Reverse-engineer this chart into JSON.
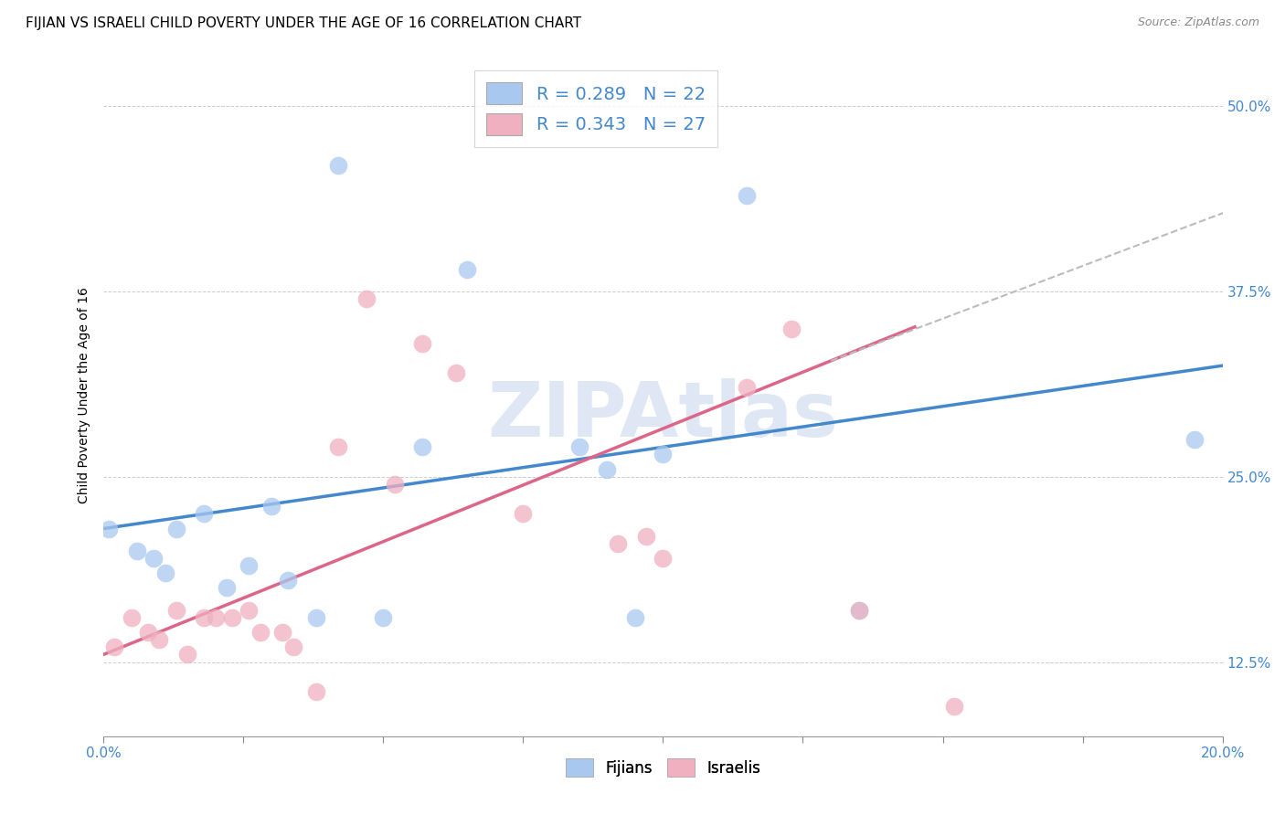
{
  "title": "FIJIAN VS ISRAELI CHILD POVERTY UNDER THE AGE OF 16 CORRELATION CHART",
  "source": "Source: ZipAtlas.com",
  "xlabel": "",
  "ylabel": "Child Poverty Under the Age of 16",
  "xlim": [
    0.0,
    0.2
  ],
  "ylim": [
    0.075,
    0.535
  ],
  "yticks": [
    0.125,
    0.25,
    0.375,
    0.5
  ],
  "ytick_labels": [
    "12.5%",
    "25.0%",
    "37.5%",
    "50.0%"
  ],
  "xticks": [
    0.0,
    0.025,
    0.05,
    0.075,
    0.1,
    0.125,
    0.15,
    0.175,
    0.2
  ],
  "xtick_labels": [
    "0.0%",
    "",
    "",
    "",
    "",
    "",
    "",
    "",
    "20.0%"
  ],
  "fijians_color": "#a8c8f0",
  "israelis_color": "#f0b0c0",
  "fijians_label": "R = 0.289   N = 22",
  "israelis_label": "R = 0.343   N = 27",
  "legend_fijians": "Fijians",
  "legend_israelis": "Israelis",
  "watermark": "ZIPAtlas",
  "fijians_x": [
    0.001,
    0.006,
    0.009,
    0.011,
    0.013,
    0.018,
    0.022,
    0.026,
    0.03,
    0.033,
    0.038,
    0.042,
    0.05,
    0.057,
    0.065,
    0.085,
    0.09,
    0.095,
    0.1,
    0.115,
    0.135,
    0.195
  ],
  "fijians_y": [
    0.215,
    0.2,
    0.195,
    0.185,
    0.215,
    0.225,
    0.175,
    0.19,
    0.23,
    0.18,
    0.155,
    0.46,
    0.155,
    0.27,
    0.39,
    0.27,
    0.255,
    0.155,
    0.265,
    0.44,
    0.16,
    0.275
  ],
  "israelis_x": [
    0.002,
    0.005,
    0.008,
    0.01,
    0.013,
    0.015,
    0.018,
    0.02,
    0.023,
    0.026,
    0.028,
    0.032,
    0.034,
    0.038,
    0.042,
    0.047,
    0.052,
    0.057,
    0.063,
    0.075,
    0.092,
    0.097,
    0.1,
    0.115,
    0.123,
    0.135,
    0.152
  ],
  "israelis_y": [
    0.135,
    0.155,
    0.145,
    0.14,
    0.16,
    0.13,
    0.155,
    0.155,
    0.155,
    0.16,
    0.145,
    0.145,
    0.135,
    0.105,
    0.27,
    0.37,
    0.245,
    0.34,
    0.32,
    0.225,
    0.205,
    0.21,
    0.195,
    0.31,
    0.35,
    0.16,
    0.095
  ],
  "fijian_trend_color": "#4488cc",
  "israeli_trend_color": "#dd6688",
  "dashed_trend_color": "#bbbbbb",
  "title_fontsize": 11,
  "axis_label_fontsize": 10,
  "tick_fontsize": 11
}
